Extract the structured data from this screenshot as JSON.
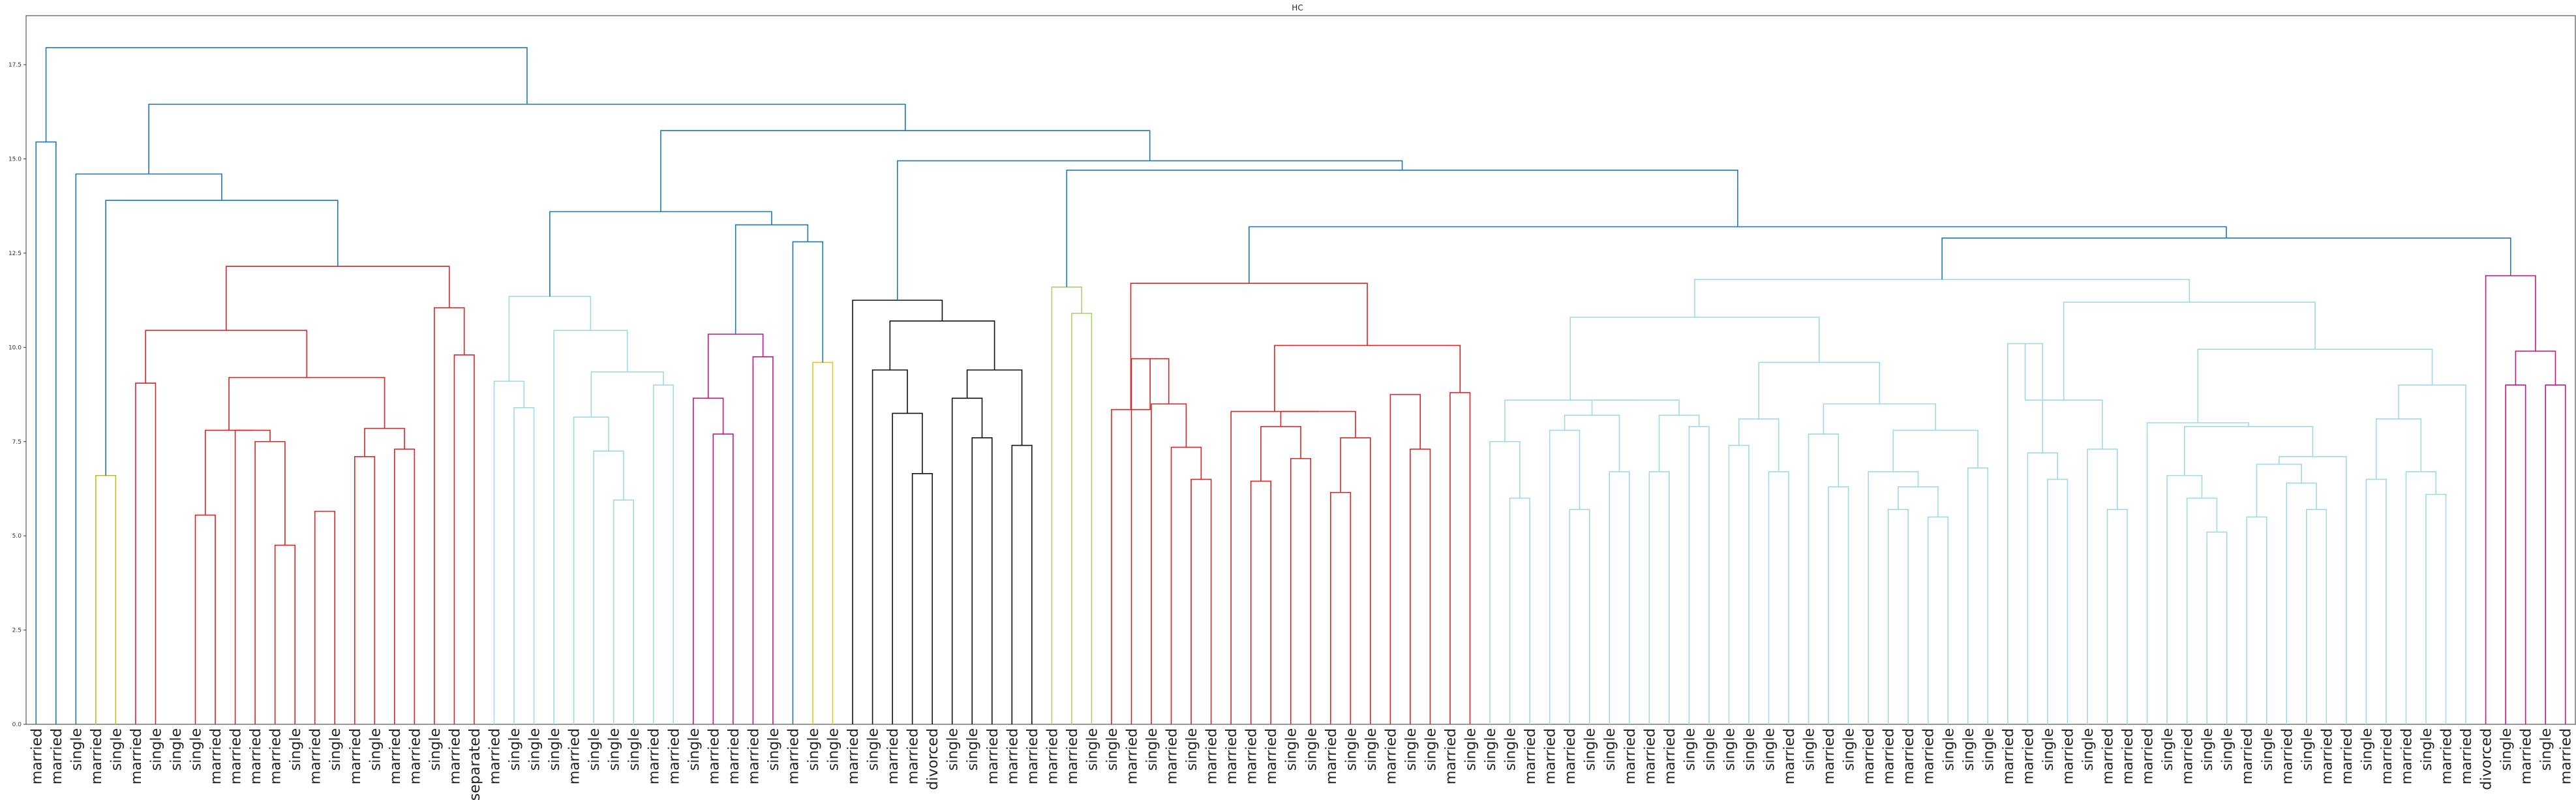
{
  "chart_data": {
    "type": "dendrogram",
    "title": "HC",
    "xlabel": "",
    "ylabel": "",
    "ylim": [
      0,
      18.8
    ],
    "y_ticks": [
      "0.0",
      "2.5",
      "5.0",
      "7.5",
      "10.0",
      "12.5",
      "15.0",
      "17.5"
    ],
    "grid": false,
    "leaf_labels": [
      "married",
      "married",
      "single",
      "married",
      "single",
      "married",
      "single",
      "single",
      "single",
      "married",
      "married",
      "married",
      "married",
      "single",
      "married",
      "single",
      "married",
      "single",
      "married",
      "married",
      "single",
      "married",
      "separated",
      "married",
      "single",
      "single",
      "single",
      "married",
      "single",
      "single",
      "single",
      "married",
      "married",
      "single",
      "married",
      "married",
      "married",
      "single",
      "married",
      "single",
      "single",
      "married",
      "single",
      "married",
      "married",
      "divorced",
      "single",
      "single",
      "married",
      "married",
      "married",
      "married",
      "married",
      "single",
      "single",
      "married",
      "single",
      "married",
      "single",
      "married",
      "married",
      "married",
      "married",
      "single",
      "single",
      "married",
      "single",
      "single",
      "married",
      "single",
      "single",
      "married",
      "single",
      "single",
      "single",
      "married",
      "married",
      "married",
      "single",
      "single",
      "married",
      "married",
      "married",
      "single",
      "single",
      "single",
      "single",
      "single",
      "married",
      "single",
      "married",
      "single",
      "married",
      "married",
      "married",
      "married",
      "single",
      "single",
      "single",
      "married",
      "married",
      "single",
      "married",
      "single",
      "married",
      "married",
      "married",
      "single",
      "married",
      "single",
      "single",
      "married",
      "single",
      "married",
      "single",
      "married",
      "married",
      "single",
      "married",
      "married",
      "single",
      "married",
      "married",
      "divorced",
      "single",
      "married",
      "single",
      "married"
    ],
    "link_colors": {
      "c0": "#1f77b4",
      "c1": "#bcbd22",
      "c2": "#d62728",
      "c3": "#9edae5",
      "c4": "#c71585",
      "c5": "#e6c619",
      "c6": "#111111",
      "c7": "#a5d46a",
      "c8": "#d62728",
      "c9": "#9edae5"
    },
    "merges": [
      {
        "id": "Aa",
        "left": 0,
        "right": 1,
        "height": 15.45,
        "color": "c0"
      },
      {
        "id": "Ab",
        "left": 5,
        "right": 6,
        "height": 9.05,
        "color": "c2"
      },
      {
        "id": "Ac",
        "left": 12,
        "right": 13,
        "height": 4.75,
        "color": "c2"
      },
      {
        "id": "Ad",
        "left": 11,
        "right": "Ac",
        "height": 7.5,
        "color": "c2"
      },
      {
        "id": "Ae",
        "left": 10,
        "right": "Ad",
        "height": 7.8,
        "color": "c2"
      },
      {
        "id": "Af",
        "left": 14,
        "right": 15,
        "height": 5.65,
        "color": "c2"
      },
      {
        "id": "Ag",
        "left": 8,
        "right": 9,
        "height": 5.55,
        "color": "c2"
      },
      {
        "id": "Ah",
        "left": "Ag",
        "right": "Ae",
        "height": 7.8,
        "color": "c2"
      },
      {
        "id": "Ai",
        "left": 16,
        "right": 17,
        "height": 7.1,
        "color": "c2"
      },
      {
        "id": "Aj",
        "left": 18,
        "right": 19,
        "height": 7.3,
        "color": "c2"
      },
      {
        "id": "Ak",
        "left": "Ai",
        "right": "Aj",
        "height": 7.85,
        "color": "c2"
      },
      {
        "id": "Al",
        "left": "Ah",
        "right": "Ak",
        "height": 9.2,
        "color": "c2"
      },
      {
        "id": "Am",
        "left": "Ab",
        "right": "Al",
        "height": 10.45,
        "color": "c2"
      },
      {
        "id": "An",
        "left": 21,
        "right": 22,
        "height": 9.8,
        "color": "c2"
      },
      {
        "id": "Ao",
        "left": 20,
        "right": "An",
        "height": 11.05,
        "color": "c2"
      },
      {
        "id": "Ap",
        "left": "Am",
        "right": "Ao",
        "height": 12.15,
        "color": "c2"
      },
      {
        "id": "Aq",
        "left": 3,
        "right": 4,
        "height": 6.6,
        "color": "c1"
      },
      {
        "id": "Ar",
        "left": "Aq",
        "right": "Ap",
        "height": 13.9,
        "color": "c0"
      },
      {
        "id": "As",
        "left": 2,
        "right": "Ar",
        "height": 14.6,
        "color": "c0"
      },
      {
        "id": "Ba",
        "left": 24,
        "right": 25,
        "height": 8.4,
        "color": "c3"
      },
      {
        "id": "Bb",
        "left": 23,
        "right": "Ba",
        "height": 9.1,
        "color": "c3"
      },
      {
        "id": "Bc",
        "left": 29,
        "right": 30,
        "height": 5.95,
        "color": "c3"
      },
      {
        "id": "Bd",
        "left": 28,
        "right": "Bc",
        "height": 7.25,
        "color": "c3"
      },
      {
        "id": "Be",
        "left": 27,
        "right": "Bd",
        "height": 8.15,
        "color": "c3"
      },
      {
        "id": "Bf",
        "left": 31,
        "right": 32,
        "height": 9.0,
        "color": "c3"
      },
      {
        "id": "Bg",
        "left": "Be",
        "right": "Bf",
        "height": 9.35,
        "color": "c3"
      },
      {
        "id": "Bh",
        "left": 26,
        "right": "Bg",
        "height": 10.45,
        "color": "c3"
      },
      {
        "id": "Bi",
        "left": "Bb",
        "right": "Bh",
        "height": 11.35,
        "color": "c3"
      },
      {
        "id": "Bj",
        "left": 34,
        "right": 35,
        "height": 7.7,
        "color": "c4"
      },
      {
        "id": "Bk",
        "left": 33,
        "right": "Bj",
        "height": 8.65,
        "color": "c4"
      },
      {
        "id": "Bl",
        "left": 36,
        "right": 37,
        "height": 9.75,
        "color": "c4"
      },
      {
        "id": "Bm",
        "left": "Bk",
        "right": "Bl",
        "height": 10.35,
        "color": "c4"
      },
      {
        "id": "Bn",
        "left": 39,
        "right": 40,
        "height": 9.6,
        "color": "c5"
      },
      {
        "id": "Bo",
        "left": 38,
        "right": "Bn",
        "height": 12.8,
        "color": "c0"
      },
      {
        "id": "Bp",
        "left": "Bm",
        "right": "Bo",
        "height": 13.25,
        "color": "c0"
      },
      {
        "id": "Bq",
        "left": "Bi",
        "right": "Bp",
        "height": 13.6,
        "color": "c0"
      },
      {
        "id": "Ca",
        "left": 44,
        "right": 45,
        "height": 6.65,
        "color": "c6"
      },
      {
        "id": "Cb",
        "left": 43,
        "right": "Ca",
        "height": 8.25,
        "color": "c6"
      },
      {
        "id": "Cc",
        "left": 42,
        "right": "Cb",
        "height": 9.4,
        "color": "c6"
      },
      {
        "id": "Cd",
        "left": 47,
        "right": 48,
        "height": 7.6,
        "color": "c6"
      },
      {
        "id": "Ce",
        "left": 46,
        "right": "Cd",
        "height": 8.65,
        "color": "c6"
      },
      {
        "id": "Cf",
        "left": 49,
        "right": 50,
        "height": 7.4,
        "color": "c6"
      },
      {
        "id": "Cg",
        "left": "Cf",
        "right": "Ce",
        "height": 9.4,
        "color": "c6"
      },
      {
        "id": "Ch",
        "left": "Cc",
        "right": "Cg",
        "height": 10.7,
        "color": "c6"
      },
      {
        "id": "Ci",
        "left": 41,
        "right": "Ch",
        "height": 11.25,
        "color": "c6"
      },
      {
        "id": "Cj",
        "left": 52,
        "right": 53,
        "height": 10.9,
        "color": "c7"
      },
      {
        "id": "Ck",
        "left": 51,
        "right": "Cj",
        "height": 11.6,
        "color": "c7"
      },
      {
        "id": "Cl",
        "left": 58,
        "right": 59,
        "height": 6.5,
        "color": "c8"
      },
      {
        "id": "Cm",
        "left": 57,
        "right": "Cl",
        "height": 7.35,
        "color": "c8"
      },
      {
        "id": "Cn",
        "left": 56,
        "right": "Cm",
        "height": 8.5,
        "color": "c8"
      },
      {
        "id": "Co",
        "left": 55,
        "right": "Cn",
        "height": 9.7,
        "color": "c8"
      },
      {
        "id": "Cp",
        "left": 54,
        "right": "Co",
        "height": 8.35,
        "color": "c8"
      },
      {
        "id": "Cq",
        "left": 61,
        "right": 62,
        "height": 6.45,
        "color": "c8"
      },
      {
        "id": "Cr",
        "left": 63,
        "right": 64,
        "height": 7.05,
        "color": "c8"
      },
      {
        "id": "Cs",
        "left": "Cr",
        "right": "Cq",
        "height": 7.9,
        "color": "c8"
      },
      {
        "id": "Ct",
        "left": 65,
        "right": 66,
        "height": 6.15,
        "color": "c8"
      },
      {
        "id": "Cu",
        "left": 67,
        "right": "Ct",
        "height": 7.6,
        "color": "c8"
      },
      {
        "id": "Cv",
        "left": "Cs",
        "right": "Cu",
        "height": 8.3,
        "color": "c8"
      },
      {
        "id": "Cw",
        "left": 60,
        "right": "Cv",
        "height": 8.3,
        "color": "c8"
      },
      {
        "id": "Cx",
        "left": 69,
        "right": 70,
        "height": 7.3,
        "color": "c8"
      },
      {
        "id": "Cy",
        "left": 68,
        "right": "Cx",
        "height": 8.75,
        "color": "c8"
      },
      {
        "id": "Cz",
        "left": 71,
        "right": 72,
        "height": 8.8,
        "color": "c8"
      },
      {
        "id": "Da",
        "left": "Cw",
        "right": "Cz",
        "height": 10.05,
        "color": "c8"
      },
      {
        "id": "Db",
        "left": "Cp",
        "right": "Da",
        "height": 11.7,
        "color": "c8"
      },
      {
        "id": "Dc",
        "left": 74,
        "right": 75,
        "height": 6.0,
        "color": "c9"
      },
      {
        "id": "Dd",
        "left": 73,
        "right": "Dc",
        "height": 7.5,
        "color": "c9"
      },
      {
        "id": "De",
        "left": 77,
        "right": 78,
        "height": 5.7,
        "color": "c9"
      },
      {
        "id": "Df",
        "left": 76,
        "right": "De",
        "height": 7.8,
        "color": "c9"
      },
      {
        "id": "Dg",
        "left": 79,
        "right": 80,
        "height": 6.7,
        "color": "c9"
      },
      {
        "id": "Dh",
        "left": "Df",
        "right": "Dg",
        "height": 8.2,
        "color": "c9"
      },
      {
        "id": "Di",
        "left": 81,
        "right": 82,
        "height": 6.7,
        "color": "c9"
      },
      {
        "id": "Dj",
        "left": 83,
        "right": 84,
        "height": 7.9,
        "color": "c9"
      },
      {
        "id": "Dk",
        "left": "Di",
        "right": "Dj",
        "height": 8.2,
        "color": "c9"
      },
      {
        "id": "Dl",
        "left": "Dh",
        "right": "Dk",
        "height": 8.6,
        "color": "c9"
      },
      {
        "id": "Dm",
        "left": "Dd",
        "right": "Dl",
        "height": 8.6,
        "color": "c9"
      },
      {
        "id": "Dn",
        "left": 85,
        "right": 86,
        "height": 7.4,
        "color": "c9"
      },
      {
        "id": "Do",
        "left": 87,
        "right": 88,
        "height": 6.7,
        "color": "c9"
      },
      {
        "id": "Dp",
        "left": "Dn",
        "right": "Do",
        "height": 8.1,
        "color": "c9"
      },
      {
        "id": "Dq",
        "left": 90,
        "right": 91,
        "height": 6.3,
        "color": "c9"
      },
      {
        "id": "Dr",
        "left": 89,
        "right": "Dq",
        "height": 7.7,
        "color": "c9"
      },
      {
        "id": "Ds",
        "left": 93,
        "right": 94,
        "height": 5.7,
        "color": "c9"
      },
      {
        "id": "Dt",
        "left": 95,
        "right": 96,
        "height": 5.5,
        "color": "c9"
      },
      {
        "id": "Du",
        "left": "Ds",
        "right": "Dt",
        "height": 6.3,
        "color": "c9"
      },
      {
        "id": "Dv",
        "left": 92,
        "right": "Du",
        "height": 6.7,
        "color": "c9"
      },
      {
        "id": "Dw",
        "left": 97,
        "right": 98,
        "height": 6.8,
        "color": "c9"
      },
      {
        "id": "Dx",
        "left": "Dv",
        "right": "Dw",
        "height": 7.8,
        "color": "c9"
      },
      {
        "id": "Dy",
        "left": "Dr",
        "right": "Dx",
        "height": 8.5,
        "color": "c9"
      },
      {
        "id": "Dz",
        "left": "Dp",
        "right": "Dy",
        "height": 9.6,
        "color": "c9"
      },
      {
        "id": "Ea",
        "left": "Dm",
        "right": "Dz",
        "height": 10.8,
        "color": "c9"
      },
      {
        "id": "Eb",
        "left": 101,
        "right": 102,
        "height": 6.5,
        "color": "c9"
      },
      {
        "id": "Ec",
        "left": 100,
        "right": "Eb",
        "height": 7.2,
        "color": "c9"
      },
      {
        "id": "Ed",
        "left": 99,
        "right": "Ec",
        "height": 10.1,
        "color": "c9"
      },
      {
        "id": "Ee",
        "left": 104,
        "right": 105,
        "height": 5.7,
        "color": "c9"
      },
      {
        "id": "Ef",
        "left": 103,
        "right": "Ee",
        "height": 7.3,
        "color": "c9"
      },
      {
        "id": "Eg",
        "left": "Ed",
        "right": "Ef",
        "height": 8.6,
        "color": "c9"
      },
      {
        "id": "Eh",
        "left": 109,
        "right": 110,
        "height": 5.1,
        "color": "c9"
      },
      {
        "id": "Ei",
        "left": 108,
        "right": "Eh",
        "height": 6.0,
        "color": "c9"
      },
      {
        "id": "Ej",
        "left": 107,
        "right": "Ei",
        "height": 6.6,
        "color": "c9"
      },
      {
        "id": "Ek",
        "left": 111,
        "right": 112,
        "height": 5.5,
        "color": "c9"
      },
      {
        "id": "El",
        "left": 114,
        "right": 115,
        "height": 5.7,
        "color": "c9"
      },
      {
        "id": "Em",
        "left": 113,
        "right": "El",
        "height": 6.4,
        "color": "c9"
      },
      {
        "id": "En",
        "left": "Ek",
        "right": "Em",
        "height": 6.9,
        "color": "c9"
      },
      {
        "id": "Eo",
        "left": "En",
        "right": 116,
        "height": 7.1,
        "color": "c9"
      },
      {
        "id": "Ep",
        "left": "Ej",
        "right": "Eo",
        "height": 7.9,
        "color": "c9"
      },
      {
        "id": "Eq",
        "left": "Ep",
        "right": 106,
        "height": 8.0,
        "color": "c9"
      },
      {
        "id": "Er",
        "left": 117,
        "right": 118,
        "height": 6.5,
        "color": "c9"
      },
      {
        "id": "Es",
        "left": 120,
        "right": 121,
        "height": 6.1,
        "color": "c9"
      },
      {
        "id": "Et",
        "left": 119,
        "right": "Es",
        "height": 6.7,
        "color": "c9"
      },
      {
        "id": "Eu",
        "left": "Er",
        "right": "Et",
        "height": 8.1,
        "color": "c9"
      },
      {
        "id": "Ev",
        "left": "Eu",
        "right": 122,
        "height": 9.0,
        "color": "c9"
      },
      {
        "id": "Ew",
        "left": "Eq",
        "right": "Ev",
        "height": 9.95,
        "color": "c9"
      },
      {
        "id": "Ex",
        "left": "Eg",
        "right": "Ew",
        "height": 11.2,
        "color": "c9"
      },
      {
        "id": "Ey",
        "left": "Ea",
        "right": "Ex",
        "height": 11.8,
        "color": "c9"
      },
      {
        "id": "Ez",
        "left": 124,
        "right": 125,
        "height": 9.0,
        "color": "c4"
      },
      {
        "id": "Fa",
        "left": 126,
        "right": 127,
        "height": 9.0,
        "color": "c4"
      },
      {
        "id": "Fb",
        "left": "Ez",
        "right": "Fa",
        "height": 9.9,
        "color": "c4"
      },
      {
        "id": "Fc",
        "left": 123,
        "right": "Fb",
        "height": 11.9,
        "color": "c4"
      },
      {
        "id": "Fd",
        "left": "Ey",
        "right": "Fc",
        "height": 12.9,
        "color": "c0"
      },
      {
        "id": "Fe",
        "left": "Db",
        "right": "Fd",
        "height": 13.2,
        "color": "c0"
      },
      {
        "id": "Ff",
        "left": "Ck",
        "right": "Fe",
        "height": 14.7,
        "color": "c0"
      },
      {
        "id": "Fg",
        "left": "Ci",
        "right": "Ff",
        "height": 14.95,
        "color": "c0"
      },
      {
        "id": "Fh",
        "left": "Bq",
        "right": "Fg",
        "height": 15.75,
        "color": "c0"
      },
      {
        "id": "Fi",
        "left": "As",
        "right": "Fh",
        "height": 16.45,
        "color": "c0"
      },
      {
        "id": "Fj",
        "left": "Aa",
        "right": "Fi",
        "height": 17.95,
        "color": "c0"
      }
    ]
  }
}
